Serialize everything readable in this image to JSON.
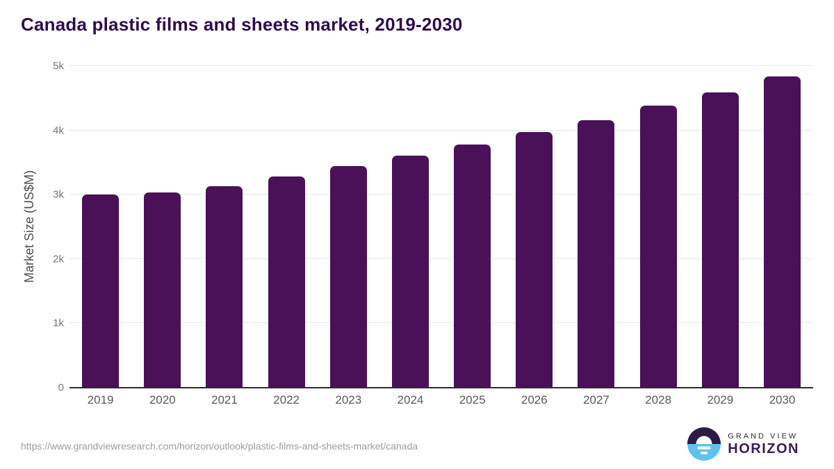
{
  "title": "Canada plastic films and sheets market, 2019-2030",
  "chart_data": {
    "type": "bar",
    "title": "Canada plastic films and sheets market, 2019-2030",
    "categories": [
      "2019",
      "2020",
      "2021",
      "2022",
      "2023",
      "2024",
      "2025",
      "2026",
      "2027",
      "2028",
      "2029",
      "2030"
    ],
    "values": [
      3000,
      3040,
      3130,
      3280,
      3440,
      3610,
      3780,
      3970,
      4160,
      4380,
      4590,
      4840
    ],
    "xlabel": "",
    "ylabel": "Market Size (US$M)",
    "ylim": [
      0,
      5000
    ],
    "yticks": [
      {
        "value": 0,
        "label": "0"
      },
      {
        "value": 1000,
        "label": "1k"
      },
      {
        "value": 2000,
        "label": "2k"
      },
      {
        "value": 3000,
        "label": "3k"
      },
      {
        "value": 4000,
        "label": "4k"
      },
      {
        "value": 5000,
        "label": "5k"
      }
    ],
    "grid": true,
    "legend": "none",
    "bar_color": "#4a1158"
  },
  "footer": {
    "source_url": "https://www.grandviewresearch.com/horizon/outlook/plastic-films-and-sheets-market/canada",
    "brand": {
      "line1": "GRAND VIEW",
      "line2": "HORIZON"
    }
  },
  "colors": {
    "title_text": "#2e0c4f",
    "bar": "#4a1158",
    "gridline": "#e6e6e6",
    "axis_line": "#2b2b2b",
    "y_tick_text": "#757575",
    "x_tick_text": "#58595b",
    "url_text": "#9c9c9c",
    "logo_dark": "#2d1a47",
    "logo_blue": "#5ec2ee",
    "logo_horizon_text": "#3a1b59"
  }
}
